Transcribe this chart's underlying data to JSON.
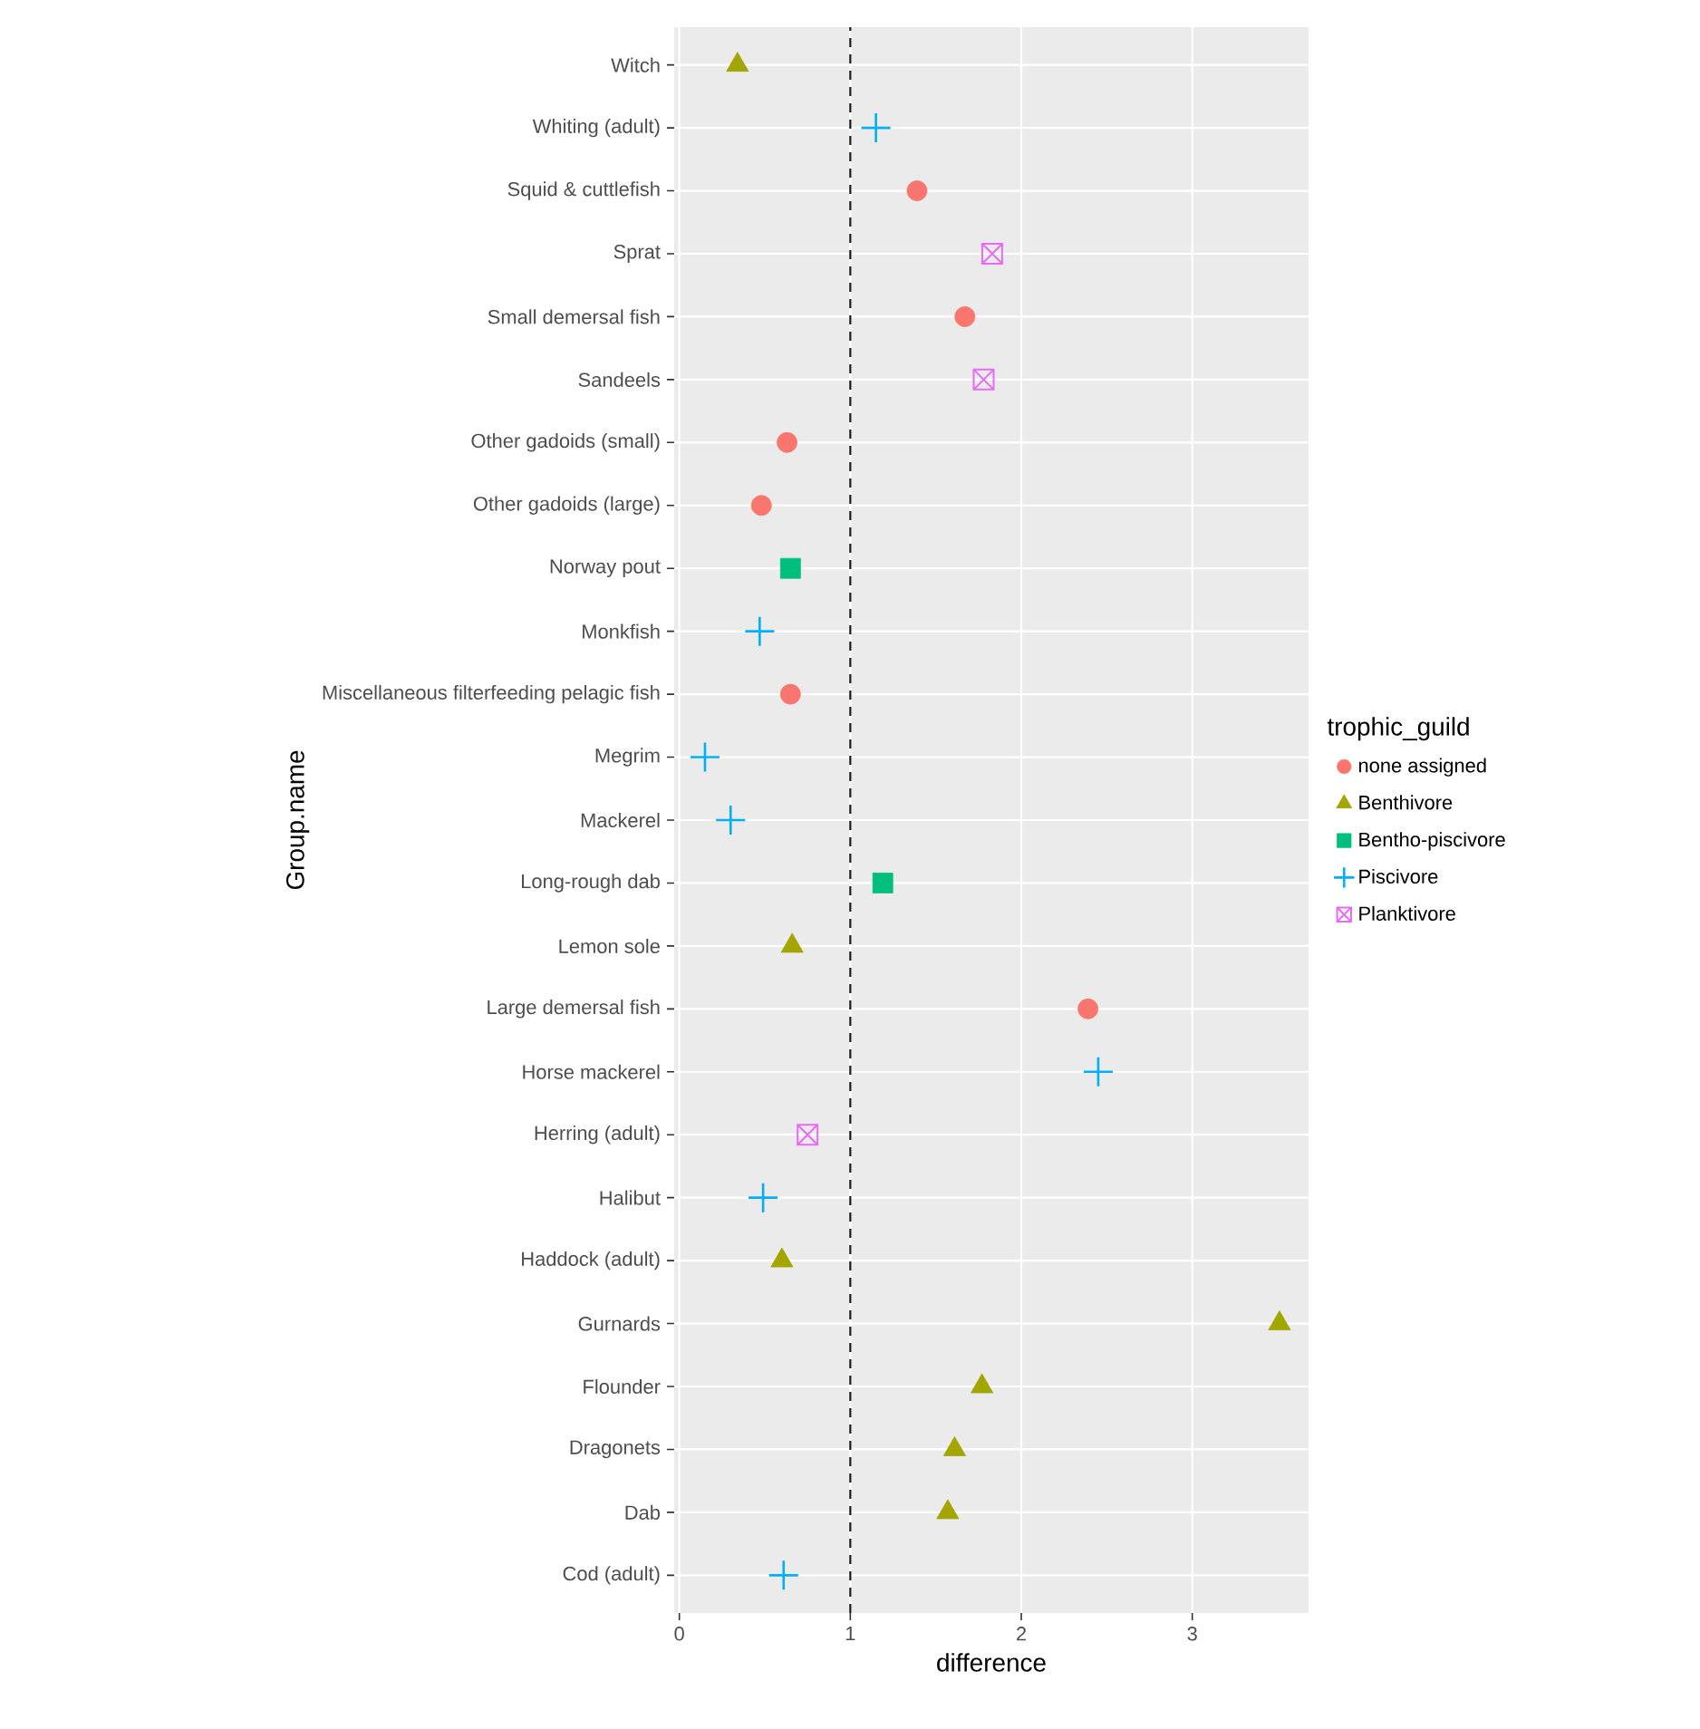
{
  "chart_data": {
    "type": "scatter",
    "orientation": "horizontal",
    "xlabel": "difference",
    "ylabel": "Group.name",
    "legend_title": "trophic_guild",
    "categories": [
      "Witch",
      "Whiting (adult)",
      "Squid & cuttlefish",
      "Sprat",
      "Small demersal fish",
      "Sandeels",
      "Other gadoids (small)",
      "Other gadoids (large)",
      "Norway pout",
      "Monkfish",
      "Miscellaneous filterfeeding pelagic fish",
      "Megrim",
      "Mackerel",
      "Long-rough dab",
      "Lemon sole",
      "Large demersal fish",
      "Horse mackerel",
      "Herring (adult)",
      "Halibut",
      "Haddock (adult)",
      "Gurnards",
      "Flounder",
      "Dragonets",
      "Dab",
      "Cod (adult)"
    ],
    "series": [
      {
        "name": "none assigned",
        "color": "#f8766d",
        "marker": "circle",
        "values": [
          null,
          null,
          1.39,
          null,
          1.67,
          null,
          0.63,
          0.48,
          null,
          null,
          0.65,
          null,
          null,
          null,
          null,
          2.39,
          null,
          null,
          null,
          null,
          null,
          null,
          null,
          null,
          null
        ]
      },
      {
        "name": "Benthivore",
        "color": "#a3a500",
        "marker": "triangle",
        "values": [
          0.34,
          null,
          null,
          null,
          null,
          null,
          null,
          null,
          null,
          null,
          null,
          null,
          null,
          null,
          0.66,
          null,
          null,
          null,
          null,
          0.6,
          3.51,
          1.77,
          1.61,
          1.57,
          null
        ]
      },
      {
        "name": "Bentho-piscivore",
        "color": "#00bf7d",
        "marker": "square",
        "values": [
          null,
          null,
          null,
          null,
          null,
          null,
          null,
          null,
          0.65,
          null,
          null,
          null,
          null,
          1.19,
          null,
          null,
          null,
          null,
          null,
          null,
          null,
          null,
          null,
          null,
          null
        ]
      },
      {
        "name": "Piscivore",
        "color": "#00b0f6",
        "marker": "cross",
        "values": [
          null,
          1.15,
          null,
          null,
          null,
          null,
          null,
          null,
          null,
          0.47,
          null,
          0.15,
          0.3,
          null,
          null,
          null,
          2.45,
          null,
          0.49,
          null,
          null,
          null,
          null,
          null,
          0.61
        ]
      },
      {
        "name": "Planktivore",
        "color": "#e76bf3",
        "marker": "cross",
        "values": [
          null,
          null,
          null,
          1.83,
          null,
          1.78,
          null,
          null,
          null,
          null,
          null,
          null,
          null,
          null,
          null,
          null,
          null,
          0.75,
          null,
          null,
          null,
          null,
          null,
          null,
          null
        ]
      }
    ],
    "xlim": [
      -0.03,
      3.68
    ],
    "xticks": [
      0,
      1,
      2,
      3
    ],
    "grid": true,
    "legend": "right",
    "ref_lines": [
      {
        "axis": "x",
        "value": 1,
        "line_style": "dashed",
        "color": "#1a1a1a"
      }
    ]
  }
}
